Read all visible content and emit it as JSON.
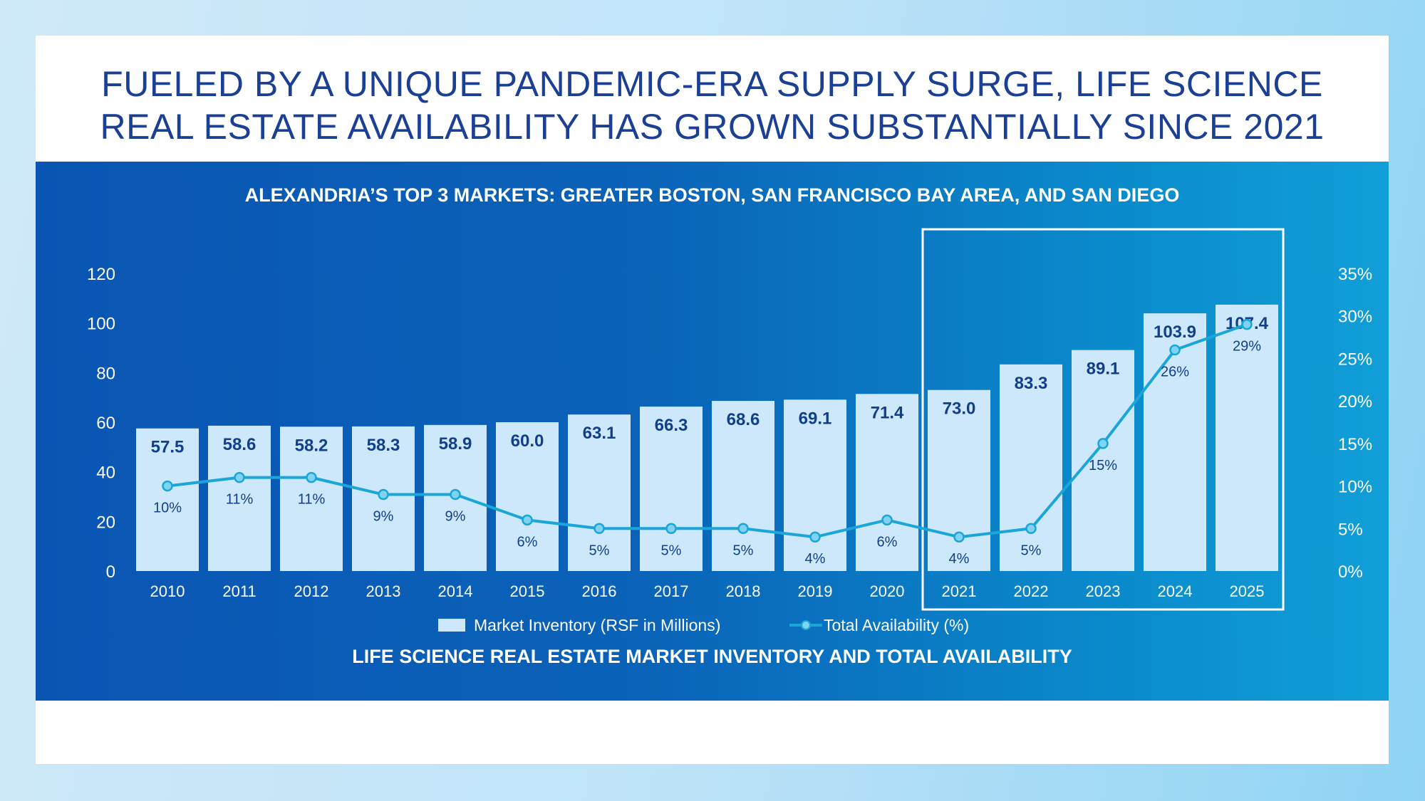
{
  "headline": {
    "line1": "FUELED BY A UNIQUE PANDEMIC-ERA SUPPLY SURGE, LIFE SCIENCE",
    "line2": "REAL ESTATE AVAILABILITY HAS GROWN SUBSTANTIALLY SINCE 2021"
  },
  "colors": {
    "bar": "#cce8fa",
    "bar_label": "#123f8c",
    "line": "#1ba6d9",
    "marker_fill": "#7fd3f1",
    "highlight_box": "#ffffff",
    "axis_text": "#ffffff"
  },
  "chart_data": {
    "type": "bar",
    "title": "ALEXANDRIA’S TOP 3 MARKETS: GREATER BOSTON, SAN FRANCISCO BAY AREA, AND SAN DIEGO",
    "footer": "LIFE SCIENCE REAL ESTATE MARKET INVENTORY AND TOTAL AVAILABILITY",
    "categories": [
      "2010",
      "2011",
      "2012",
      "2013",
      "2014",
      "2015",
      "2016",
      "2017",
      "2018",
      "2019",
      "2020",
      "2021",
      "2022",
      "2023",
      "2024",
      "2025"
    ],
    "series": [
      {
        "name": "Market Inventory (RSF in Millions)",
        "type": "bar",
        "axis": "left",
        "values": [
          57.5,
          58.6,
          58.2,
          58.3,
          58.9,
          60.0,
          63.1,
          66.3,
          68.6,
          69.1,
          71.4,
          73.0,
          83.3,
          89.1,
          103.9,
          107.4
        ],
        "labels": [
          "57.5",
          "58.6",
          "58.2",
          "58.3",
          "58.9",
          "60.0",
          "63.1",
          "66.3",
          "68.6",
          "69.1",
          "71.4",
          "73.0",
          "83.3",
          "89.1",
          "103.9",
          "107.4"
        ]
      },
      {
        "name": "Total Availability (%)",
        "type": "line",
        "axis": "right",
        "values": [
          10,
          11,
          11,
          9,
          9,
          6,
          5,
          5,
          5,
          4,
          6,
          4,
          5,
          15,
          26,
          29
        ],
        "labels": [
          "10%",
          "11%",
          "11%",
          "9%",
          "9%",
          "6%",
          "5%",
          "5%",
          "5%",
          "4%",
          "6%",
          "4%",
          "5%",
          "15%",
          "26%",
          "29%"
        ]
      }
    ],
    "y_left": {
      "ylim": [
        0,
        120
      ],
      "ticks": [
        "0",
        "20",
        "40",
        "60",
        "80",
        "100",
        "120"
      ]
    },
    "y_right": {
      "ylim": [
        0,
        35
      ],
      "ticks": [
        "0%",
        "5%",
        "10%",
        "15%",
        "20%",
        "25%",
        "30%",
        "35%"
      ]
    },
    "highlight": {
      "from": "2021",
      "to": "2025"
    },
    "legend": {
      "position": "bottom-center"
    }
  }
}
